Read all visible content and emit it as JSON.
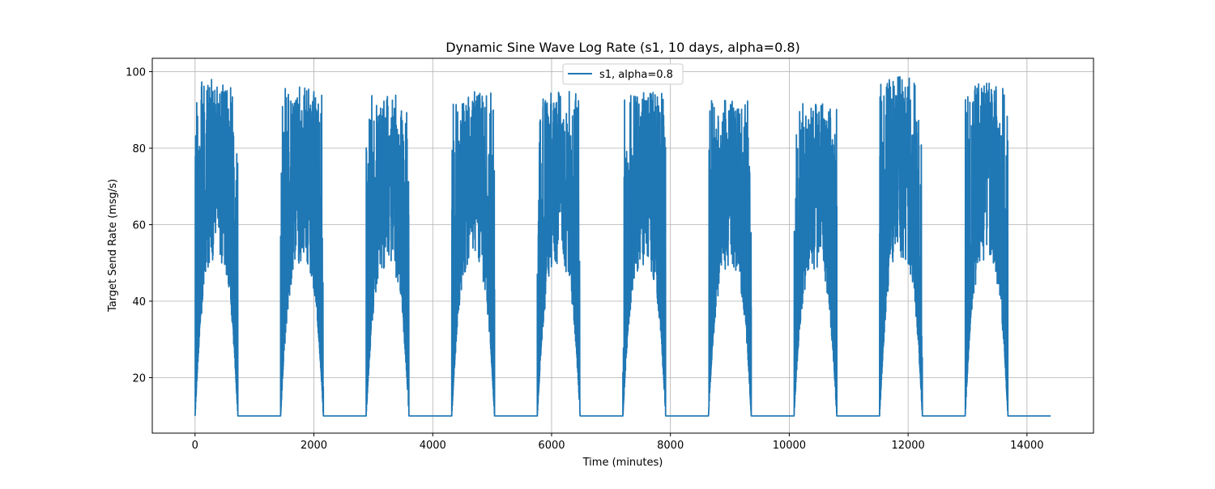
{
  "chart_data": {
    "type": "line",
    "title": "Dynamic Sine Wave Log Rate (s1, 10 days, alpha=0.8)",
    "xlabel": "Time (minutes)",
    "ylabel": "Target Send Rate (msg/s)",
    "xlim": [
      -720,
      15120
    ],
    "ylim": [
      5.5,
      103.5
    ],
    "xticks": [
      0,
      2000,
      4000,
      6000,
      8000,
      10000,
      12000,
      14000
    ],
    "xtick_labels": [
      "0",
      "2000",
      "4000",
      "6000",
      "8000",
      "10000",
      "12000",
      "14000"
    ],
    "yticks": [
      20,
      40,
      60,
      80,
      100
    ],
    "ytick_labels": [
      "20",
      "40",
      "60",
      "80",
      "100"
    ],
    "grid": true,
    "legend_position": "top-center",
    "series": [
      {
        "name": "s1, alpha=0.8",
        "color": "#1f77b4",
        "baseline": 10,
        "cycle_minutes": 1440,
        "active_minutes": 720,
        "x_start": 0,
        "x_end": 14400,
        "peaks": [
          98,
          96,
          94,
          95,
          95,
          95,
          93,
          92,
          99,
          97
        ]
      }
    ]
  }
}
